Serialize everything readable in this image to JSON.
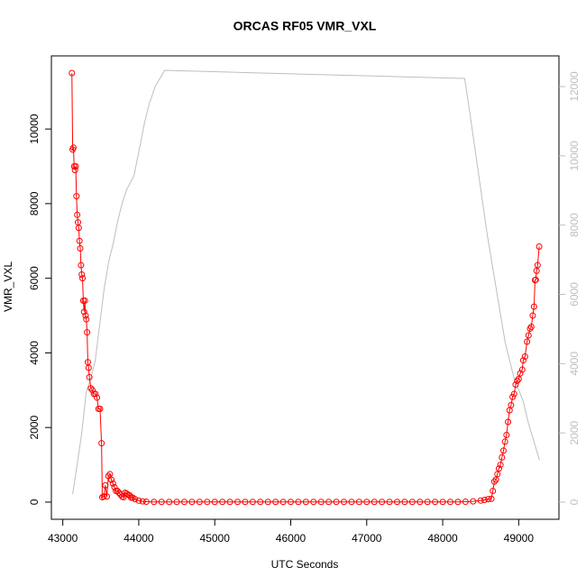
{
  "chart_data": {
    "type": "line",
    "title": "ORCAS RF05 VMR_VXL",
    "xlabel": "UTC Seconds",
    "ylabel": "VMR_VXL",
    "xlim": [
      42850,
      49530
    ],
    "xticks": [
      43000,
      44000,
      45000,
      46000,
      47000,
      48000,
      49000
    ],
    "ylim": [
      -460,
      11960
    ],
    "yticks": [
      0,
      2000,
      4000,
      6000,
      8000,
      10000
    ],
    "y2lim": [
      -495,
      12885
    ],
    "y2ticks": [
      0,
      2000,
      4000,
      6000,
      8000,
      10000,
      12000
    ],
    "series": [
      {
        "color": "#ff0000",
        "markers": true,
        "x": [
          43120,
          43130,
          43140,
          43150,
          43160,
          43170,
          43180,
          43190,
          43200,
          43210,
          43220,
          43230,
          43240,
          43250,
          43260,
          43270,
          43280,
          43290,
          43300,
          43310,
          43320,
          43330,
          43340,
          43350,
          43370,
          43390,
          43410,
          43430,
          43450,
          43470,
          43490,
          43510,
          43520,
          43540,
          43560,
          43580,
          43600,
          43620,
          43640,
          43660,
          43680,
          43700,
          43720,
          43740,
          43760,
          43780,
          43800,
          43820,
          43840,
          43860,
          43880,
          43900,
          43920,
          43950,
          44000,
          44050,
          44100,
          44200,
          44300,
          44400,
          44500,
          44600,
          44700,
          44800,
          44900,
          45000,
          45100,
          45200,
          45300,
          45400,
          45500,
          45600,
          45700,
          45800,
          45900,
          46000,
          46100,
          46200,
          46300,
          46400,
          46500,
          46600,
          46700,
          46800,
          46900,
          47000,
          47100,
          47200,
          47300,
          47400,
          47500,
          47600,
          47700,
          47800,
          47900,
          48000,
          48100,
          48200,
          48300,
          48400,
          48500,
          48550,
          48600,
          48640,
          48660,
          48680,
          48700,
          48720,
          48740,
          48760,
          48780,
          48800,
          48820,
          48840,
          48860,
          48880,
          48900,
          48920,
          48940,
          48960,
          48980,
          49000,
          49020,
          49047,
          49060,
          49083,
          49110,
          49130,
          49150,
          49166,
          49185,
          49202,
          49215,
          49225,
          49235,
          49249,
          49270
        ],
        "values": [
          11500,
          9450,
          9500,
          9000,
          8900,
          9000,
          8200,
          7700,
          7500,
          7350,
          7000,
          6800,
          6350,
          6100,
          6000,
          5400,
          5100,
          5400,
          5000,
          4900,
          4550,
          3750,
          3600,
          3350,
          3050,
          3000,
          2900,
          2900,
          2800,
          2500,
          2500,
          1580,
          130,
          150,
          450,
          150,
          700,
          750,
          600,
          500,
          400,
          300,
          300,
          250,
          200,
          150,
          130,
          250,
          230,
          200,
          180,
          120,
          120,
          80,
          40,
          20,
          10,
          5,
          5,
          5,
          5,
          5,
          5,
          5,
          5,
          5,
          5,
          5,
          5,
          5,
          5,
          5,
          5,
          5,
          5,
          5,
          5,
          5,
          5,
          5,
          5,
          5,
          5,
          5,
          5,
          5,
          5,
          5,
          5,
          5,
          5,
          5,
          5,
          5,
          5,
          5,
          5,
          5,
          10,
          20,
          40,
          60,
          80,
          90,
          300,
          550,
          600,
          750,
          900,
          1000,
          1200,
          1380,
          1620,
          1800,
          2150,
          2460,
          2600,
          2820,
          2900,
          3150,
          3250,
          3300,
          3450,
          3550,
          3800,
          3900,
          4300,
          4470,
          4650,
          4700,
          5000,
          5240,
          5950,
          5960,
          6200,
          6350,
          6850
        ]
      },
      {
        "color": "#bebebe",
        "axis": "y2",
        "markers": false,
        "x": [
          43130,
          43190,
          43250,
          43308,
          43368,
          43427,
          43486,
          43545,
          43605,
          43664,
          43723,
          43783,
          43842,
          43937,
          44020,
          44079,
          44138,
          44221,
          44293,
          44340,
          48289,
          48348,
          48467,
          48586,
          48704,
          48823,
          48941,
          49059,
          49130,
          49273
        ],
        "values": [
          234,
          1093,
          2004,
          3175,
          3566,
          4086,
          5128,
          6169,
          6950,
          7470,
          8121,
          8641,
          9032,
          9422,
          10333,
          10984,
          11505,
          12025,
          12285,
          12467,
          12233,
          11374,
          9552,
          7730,
          6169,
          4607,
          3566,
          2915,
          2264,
          1223
        ]
      }
    ]
  }
}
